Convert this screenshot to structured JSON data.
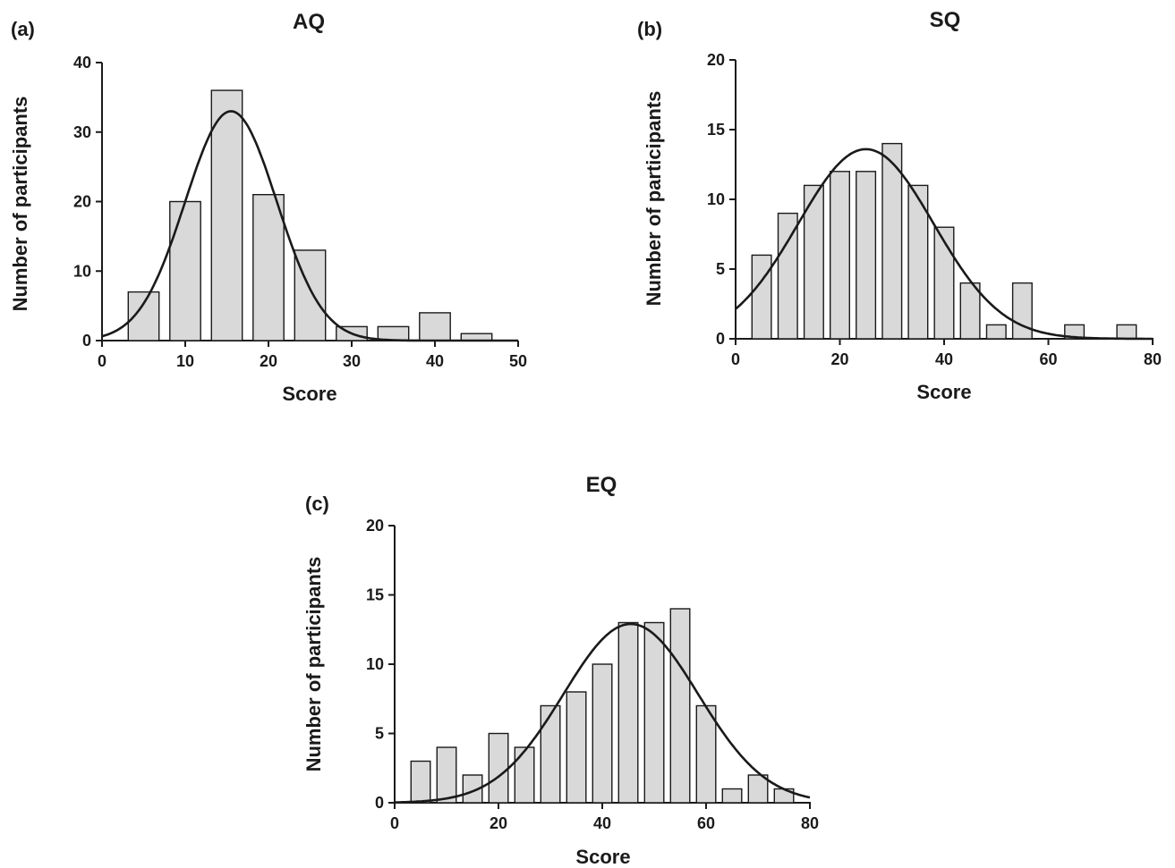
{
  "chart_data": [
    {
      "id": "a",
      "type": "bar",
      "panel_label": "(a)",
      "title": "AQ",
      "xlabel": "Score",
      "ylabel": "Number of participants",
      "xlim": [
        0,
        50
      ],
      "ylim": [
        0,
        40
      ],
      "xticks": [
        0,
        10,
        20,
        30,
        40,
        50
      ],
      "yticks": [
        0,
        10,
        20,
        30,
        40
      ],
      "bin_width": 5,
      "bins": [
        {
          "center": 5,
          "count": 7
        },
        {
          "center": 10,
          "count": 20
        },
        {
          "center": 15,
          "count": 36
        },
        {
          "center": 20,
          "count": 21
        },
        {
          "center": 25,
          "count": 13
        },
        {
          "center": 30,
          "count": 2
        },
        {
          "center": 35,
          "count": 2
        },
        {
          "center": 40,
          "count": 4
        },
        {
          "center": 45,
          "count": 1
        }
      ],
      "fit_curve": {
        "type": "gaussian",
        "mean": 15.5,
        "sd": 5.5,
        "peak": 33
      }
    },
    {
      "id": "b",
      "type": "bar",
      "panel_label": "(b)",
      "title": "SQ",
      "xlabel": "Score",
      "ylabel": "Number of participants",
      "xlim": [
        0,
        80
      ],
      "ylim": [
        0,
        20
      ],
      "xticks": [
        0,
        20,
        40,
        60,
        80
      ],
      "yticks": [
        0,
        5,
        10,
        15,
        20
      ],
      "bin_width": 5,
      "bins": [
        {
          "center": 5,
          "count": 6
        },
        {
          "center": 10,
          "count": 9
        },
        {
          "center": 15,
          "count": 11
        },
        {
          "center": 20,
          "count": 12
        },
        {
          "center": 25,
          "count": 12
        },
        {
          "center": 30,
          "count": 14
        },
        {
          "center": 35,
          "count": 11
        },
        {
          "center": 40,
          "count": 8
        },
        {
          "center": 45,
          "count": 4
        },
        {
          "center": 50,
          "count": 1
        },
        {
          "center": 55,
          "count": 4
        },
        {
          "center": 60,
          "count": 0
        },
        {
          "center": 65,
          "count": 1
        },
        {
          "center": 70,
          "count": 0
        },
        {
          "center": 75,
          "count": 1
        }
      ],
      "fit_curve": {
        "type": "gaussian",
        "mean": 25,
        "sd": 13,
        "peak": 13.6
      }
    },
    {
      "id": "c",
      "type": "bar",
      "panel_label": "(c)",
      "title": "EQ",
      "xlabel": "Score",
      "ylabel": "Number of participants",
      "xlim": [
        0,
        80
      ],
      "ylim": [
        0,
        20
      ],
      "xticks": [
        0,
        20,
        40,
        60,
        80
      ],
      "yticks": [
        0,
        5,
        10,
        15,
        20
      ],
      "bin_width": 5,
      "bins": [
        {
          "center": 5,
          "count": 3
        },
        {
          "center": 10,
          "count": 4
        },
        {
          "center": 15,
          "count": 2
        },
        {
          "center": 20,
          "count": 5
        },
        {
          "center": 25,
          "count": 4
        },
        {
          "center": 30,
          "count": 7
        },
        {
          "center": 35,
          "count": 8
        },
        {
          "center": 40,
          "count": 10
        },
        {
          "center": 45,
          "count": 13
        },
        {
          "center": 50,
          "count": 13
        },
        {
          "center": 55,
          "count": 14
        },
        {
          "center": 60,
          "count": 7
        },
        {
          "center": 65,
          "count": 1
        },
        {
          "center": 70,
          "count": 2
        },
        {
          "center": 75,
          "count": 1
        }
      ],
      "fit_curve": {
        "type": "gaussian",
        "mean": 45.5,
        "sd": 13,
        "peak": 12.9
      }
    }
  ]
}
